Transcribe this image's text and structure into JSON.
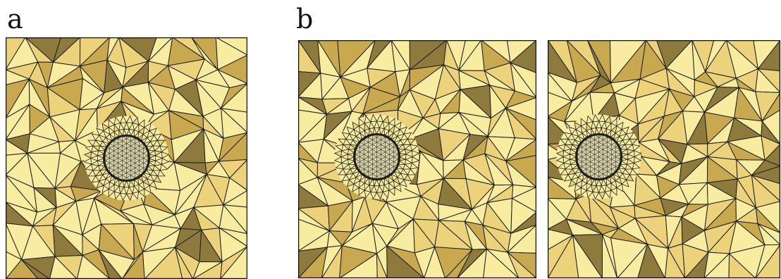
{
  "labels": {
    "a": "a",
    "b": "b"
  },
  "panels": [
    {
      "id": "mesh-a",
      "description_name": "mesh-panel-a",
      "seed": 7,
      "hole": [
        0.5,
        0.5
      ],
      "stretch": 0
    },
    {
      "id": "mesh-b1",
      "description_name": "mesh-panel-b-left",
      "seed": 19,
      "hole": [
        0.33,
        0.49
      ],
      "stretch": 0.18
    },
    {
      "id": "mesh-b2",
      "description_name": "mesh-panel-b-right",
      "seed": 31,
      "hole": [
        0.22,
        0.49
      ],
      "stretch": 0.35
    }
  ],
  "colors": {
    "fill_light": "#f7eca0",
    "fill_mid": "#ecd27a",
    "fill_dark": "#c9a94f",
    "fill_shadow": "#8f7a3e",
    "edge": "#1e1e1e",
    "hole_fill": "#d9d3a8",
    "border": "#111111"
  }
}
